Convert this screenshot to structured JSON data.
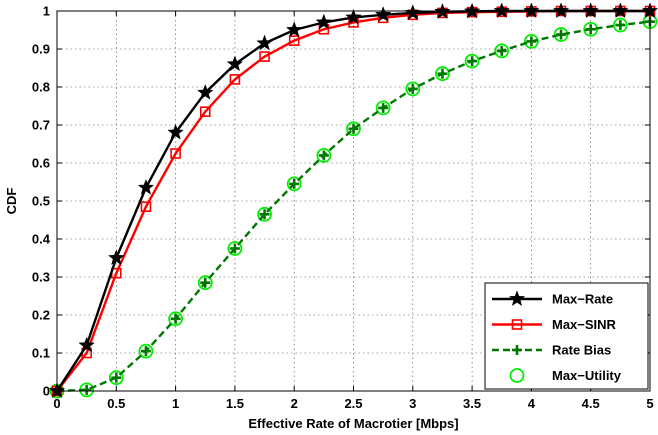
{
  "chart_data": {
    "type": "line",
    "xlabel": "Effective Rate of Macrotier [Mbps]",
    "ylabel": "CDF",
    "xlim": [
      0,
      5
    ],
    "ylim": [
      0,
      1
    ],
    "xticks": [
      "0",
      "0.5",
      "1",
      "1.5",
      "2",
      "2.5",
      "3",
      "3.5",
      "4",
      "4.5",
      "5"
    ],
    "yticks": [
      "0",
      "0.1",
      "0.2",
      "0.3",
      "0.4",
      "0.5",
      "0.6",
      "0.7",
      "0.8",
      "0.9",
      "1"
    ],
    "grid": true,
    "legend_position": "bottom-right",
    "series": [
      {
        "name": "Max−Rate",
        "color": "#000000",
        "line_style": "solid",
        "marker": "star",
        "x": [
          0,
          0.25,
          0.5,
          0.75,
          1.0,
          1.25,
          1.5,
          1.75,
          2.0,
          2.25,
          2.5,
          2.75,
          3.0,
          3.25,
          3.5,
          3.75,
          4.0,
          4.25,
          4.5,
          4.75,
          5.0
        ],
        "y": [
          0,
          0.12,
          0.35,
          0.535,
          0.68,
          0.785,
          0.86,
          0.915,
          0.95,
          0.97,
          0.983,
          0.99,
          0.995,
          0.998,
          0.999,
          1.0,
          1.0,
          1.0,
          1.0,
          1.0,
          1.0
        ]
      },
      {
        "name": "Max−SINR",
        "color": "#ff0000",
        "line_style": "solid",
        "marker": "square",
        "x": [
          0,
          0.25,
          0.5,
          0.75,
          1.0,
          1.25,
          1.5,
          1.75,
          2.0,
          2.25,
          2.5,
          2.75,
          3.0,
          3.25,
          3.5,
          3.75,
          4.0,
          4.25,
          4.5,
          4.75,
          5.0
        ],
        "y": [
          0,
          0.1,
          0.31,
          0.485,
          0.625,
          0.735,
          0.82,
          0.88,
          0.922,
          0.952,
          0.97,
          0.982,
          0.99,
          0.995,
          0.997,
          0.998,
          0.999,
          1.0,
          1.0,
          1.0,
          1.0
        ]
      },
      {
        "name": "Rate Bias",
        "color": "#007700",
        "line_style": "dashed",
        "marker": "plus",
        "x": [
          0,
          0.25,
          0.5,
          0.75,
          1.0,
          1.25,
          1.5,
          1.75,
          2.0,
          2.25,
          2.5,
          2.75,
          3.0,
          3.25,
          3.5,
          3.75,
          4.0,
          4.25,
          4.5,
          4.75,
          5.0
        ],
        "y": [
          0,
          0.003,
          0.035,
          0.105,
          0.19,
          0.285,
          0.375,
          0.465,
          0.545,
          0.62,
          0.69,
          0.745,
          0.795,
          0.835,
          0.868,
          0.895,
          0.92,
          0.938,
          0.952,
          0.963,
          0.972
        ]
      },
      {
        "name": "Max−Utility",
        "color": "#00ee00",
        "line_style": "none",
        "marker": "circle",
        "x": [
          0,
          0.25,
          0.5,
          0.75,
          1.0,
          1.25,
          1.5,
          1.75,
          2.0,
          2.25,
          2.5,
          2.75,
          3.0,
          3.25,
          3.5,
          3.75,
          4.0,
          4.25,
          4.5,
          4.75,
          5.0
        ],
        "y": [
          0,
          0.003,
          0.035,
          0.105,
          0.19,
          0.285,
          0.375,
          0.465,
          0.545,
          0.62,
          0.69,
          0.745,
          0.795,
          0.835,
          0.868,
          0.895,
          0.92,
          0.938,
          0.952,
          0.963,
          0.972
        ]
      }
    ]
  }
}
